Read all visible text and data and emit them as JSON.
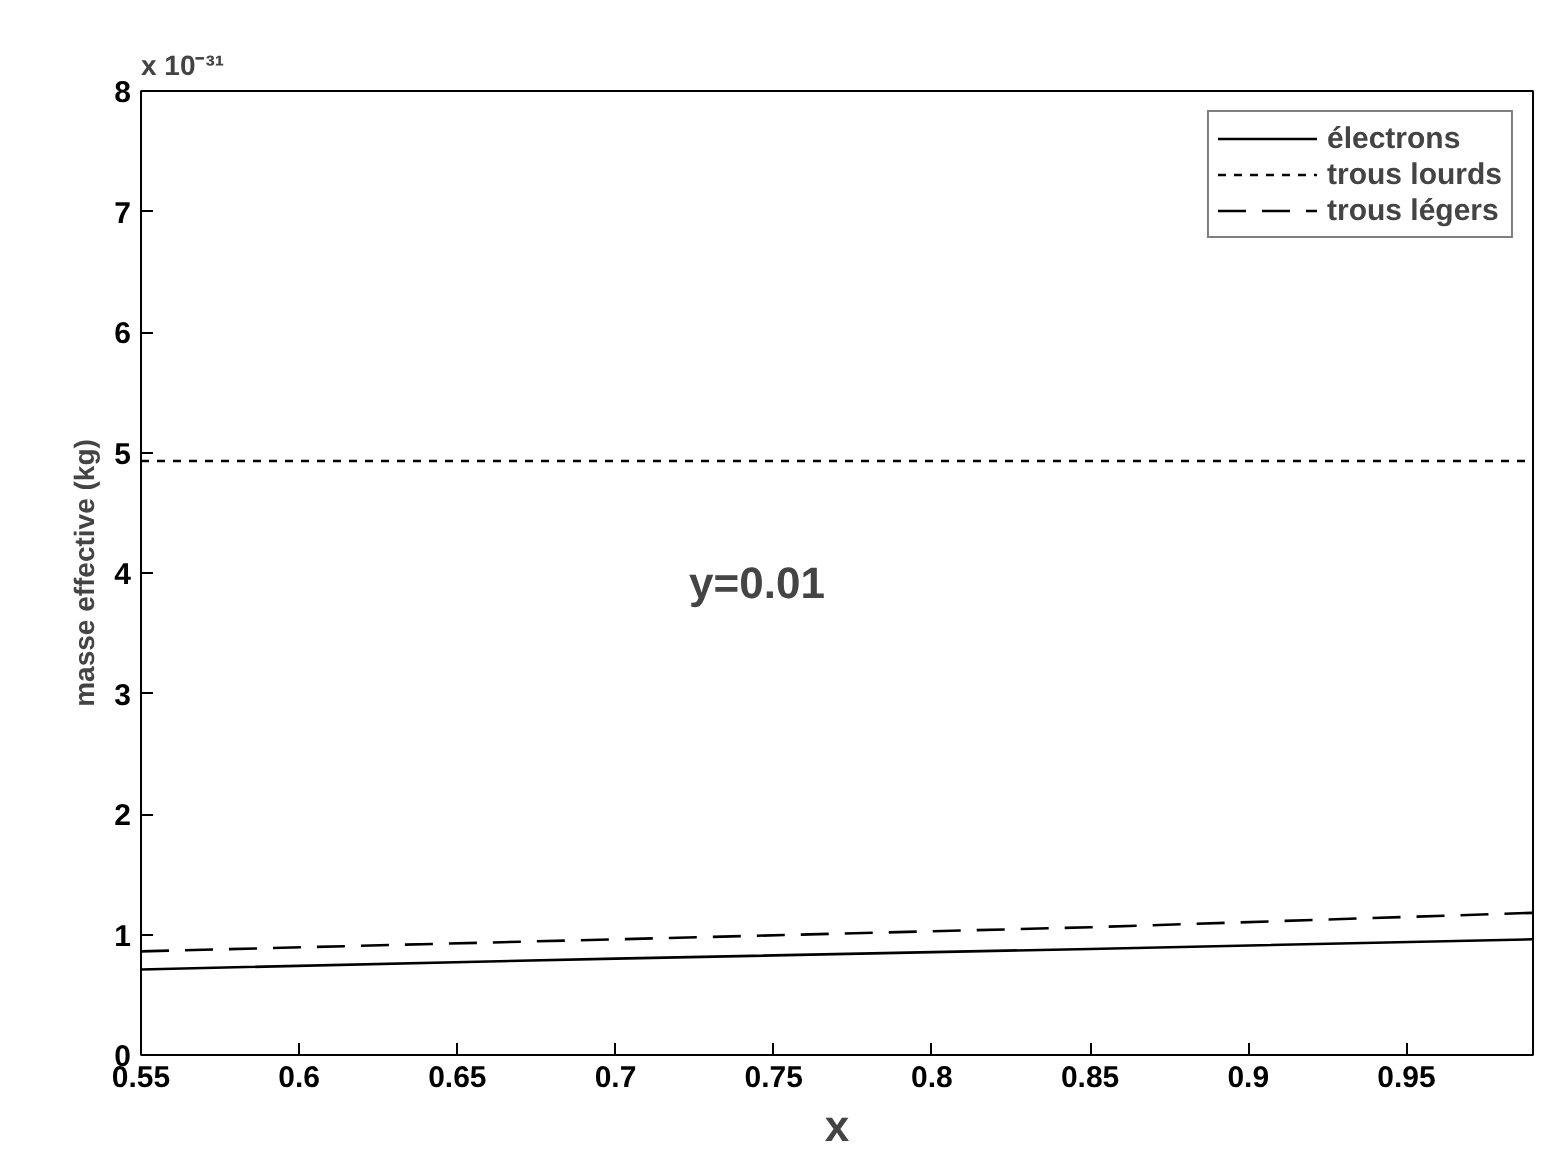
{
  "chart_data": {
    "type": "line",
    "xlabel": "x",
    "ylabel": "masse effective (kg)",
    "annotations": [
      "x 10⁻³¹",
      "y=0.01"
    ],
    "xlim": [
      0.55,
      0.99
    ],
    "ylim": [
      0,
      8
    ],
    "xticks": [
      0.55,
      0.6,
      0.65,
      0.7,
      0.75,
      0.8,
      0.85,
      0.9,
      0.95
    ],
    "yticks": [
      0,
      1,
      2,
      3,
      4,
      5,
      6,
      7,
      8
    ],
    "grid": false,
    "legend": "top right",
    "series": [
      {
        "name": "électrons",
        "color": "#000000",
        "line_style": "solid",
        "x": [
          0.55,
          0.7,
          0.85,
          0.99
        ],
        "values": [
          0.71,
          0.8,
          0.88,
          0.96
        ]
      },
      {
        "name": "trous lourds",
        "color": "#000000",
        "line_style": "dotted",
        "x": [
          0.55,
          0.99
        ],
        "values": [
          4.93,
          4.93
        ]
      },
      {
        "name": "trous légers",
        "color": "#000000",
        "line_style": "dashed",
        "x": [
          0.55,
          0.7,
          0.85,
          0.99
        ],
        "values": [
          0.86,
          0.96,
          1.06,
          1.18
        ]
      }
    ]
  }
}
